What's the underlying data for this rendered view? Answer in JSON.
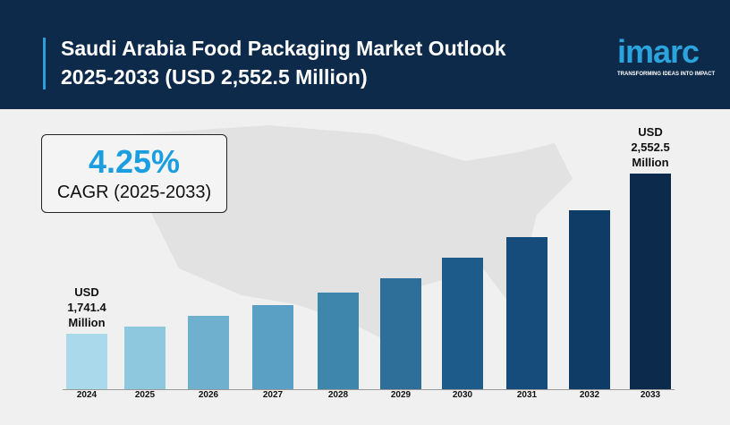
{
  "header": {
    "title": "Saudi Arabia Food Packaging Market Outlook 2025-2033 (USD 2,552.5 Million)",
    "logo": "imarc",
    "tagline": "TRANSFORMING IDEAS INTO IMPACT"
  },
  "callout": {
    "value": "4.25%",
    "label": "CAGR (2025-2033)"
  },
  "chart_data": {
    "type": "bar",
    "categories": [
      "2024",
      "2025",
      "2026",
      "2027",
      "2028",
      "2029",
      "2030",
      "2031",
      "2032",
      "2033"
    ],
    "values": [
      1741.4,
      1777.6,
      1832,
      1886.4,
      1949.8,
      2022.3,
      2126.5,
      2230.8,
      2366.7,
      2552.5
    ],
    "value_labels": [
      "USD 1,741.4 Million",
      null,
      null,
      null,
      null,
      null,
      null,
      null,
      null,
      "USD 2,552.5 Million"
    ],
    "colors": [
      "#a9d9ea",
      "#8ec8df",
      "#6fb0cf",
      "#5a9fc4",
      "#3f86ad",
      "#2e6f99",
      "#1d5c8a",
      "#154c7b",
      "#0f3c66",
      "#0b2a4c"
    ],
    "ylim": [
      1460,
      2700
    ]
  }
}
